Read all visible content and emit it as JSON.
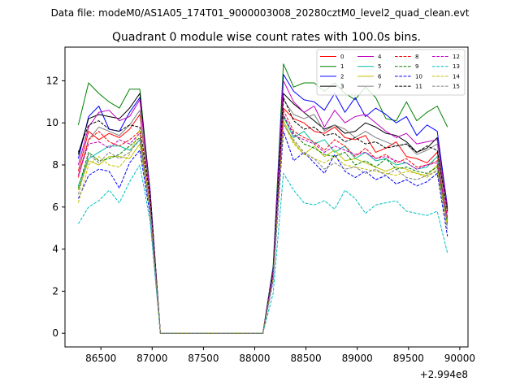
{
  "chart_data": {
    "type": "line",
    "suptitle": "Data file: modeM0/AS1A05_174T01_9000003008_20280cztM0_level2_quad_clean.evt",
    "title": "Quadrant 0 module wise count rates with 100.0s bins.",
    "xlabel": "",
    "ylabel": "",
    "x_offset_label": "+2.994e8",
    "xlim": [
      86150,
      90080
    ],
    "ylim": [
      -0.65,
      13.6
    ],
    "xticks": [
      86500,
      87000,
      87500,
      88000,
      88500,
      89000,
      89500,
      90000
    ],
    "yticks": [
      0,
      2,
      4,
      6,
      8,
      10,
      12
    ],
    "legend_position": "top-right",
    "x": [
      86280,
      86380,
      86480,
      86580,
      86680,
      86780,
      86880,
      86980,
      87080,
      87180,
      87280,
      87380,
      87480,
      87580,
      87680,
      87780,
      87880,
      87980,
      88080,
      88180,
      88280,
      88380,
      88480,
      88580,
      88680,
      88780,
      88880,
      88980,
      89080,
      89180,
      89280,
      89380,
      89480,
      89580,
      89680,
      89780,
      89880
    ],
    "series": [
      {
        "name": "0",
        "color": "#ff0000",
        "dash": "solid",
        "values": [
          7.7,
          9.6,
          9.2,
          9.5,
          9.3,
          9.7,
          10.4,
          6.5,
          0,
          0,
          0,
          0,
          0,
          0,
          0,
          0,
          0,
          0,
          0,
          2.8,
          10.7,
          10.2,
          10.0,
          9.6,
          9.5,
          9.8,
          9.3,
          9.2,
          9.4,
          8.6,
          8.8,
          9.1,
          8.4,
          8.3,
          8.1,
          8.6,
          5.8
        ]
      },
      {
        "name": "1",
        "color": "#008000",
        "dash": "solid",
        "values": [
          9.9,
          11.9,
          11.4,
          11.0,
          10.7,
          11.6,
          11.6,
          6.7,
          0,
          0,
          0,
          0,
          0,
          0,
          0,
          0,
          0,
          0,
          0,
          3.2,
          12.8,
          11.7,
          11.9,
          11.9,
          11.5,
          11.9,
          11.4,
          11.1,
          11.7,
          11.2,
          10.2,
          10.1,
          11.0,
          10.1,
          10.5,
          10.8,
          9.8
        ]
      },
      {
        "name": "2",
        "color": "#0000ff",
        "dash": "solid",
        "values": [
          8.3,
          10.3,
          10.8,
          9.7,
          9.6,
          10.5,
          11.2,
          6.8,
          0,
          0,
          0,
          0,
          0,
          0,
          0,
          0,
          0,
          0,
          0,
          3.1,
          12.3,
          11.5,
          11.1,
          11.0,
          10.6,
          11.4,
          10.5,
          11.2,
          10.3,
          10.7,
          10.4,
          10.0,
          10.3,
          9.4,
          9.9,
          9.6,
          6.0
        ]
      },
      {
        "name": "3",
        "color": "#000000",
        "dash": "solid",
        "values": [
          8.5,
          10.2,
          10.4,
          10.3,
          10.2,
          10.7,
          11.4,
          6.7,
          0,
          0,
          0,
          0,
          0,
          0,
          0,
          0,
          0,
          0,
          0,
          3.0,
          11.4,
          10.9,
          10.5,
          10.1,
          9.7,
          9.9,
          9.5,
          9.6,
          10.0,
          9.8,
          9.5,
          9.4,
          9.1,
          8.6,
          8.8,
          9.3,
          5.9
        ]
      },
      {
        "name": "4",
        "color": "#bf00bf",
        "dash": "solid",
        "values": [
          8.0,
          9.8,
          10.5,
          10.6,
          10.1,
          10.3,
          11.1,
          6.6,
          0,
          0,
          0,
          0,
          0,
          0,
          0,
          0,
          0,
          0,
          0,
          3.0,
          12.0,
          11.0,
          10.5,
          10.8,
          9.8,
          10.6,
          10.0,
          10.3,
          10.4,
          10.0,
          9.6,
          9.3,
          9.5,
          9.0,
          9.1,
          9.2,
          5.9
        ]
      },
      {
        "name": "5",
        "color": "#00bf9f",
        "dash": "solid",
        "values": [
          7.0,
          8.3,
          8.6,
          8.9,
          8.9,
          8.7,
          9.2,
          6.0,
          0,
          0,
          0,
          0,
          0,
          0,
          0,
          0,
          0,
          0,
          0,
          2.8,
          10.3,
          9.3,
          9.6,
          9.0,
          9.2,
          8.6,
          8.9,
          8.3,
          8.6,
          8.2,
          8.3,
          8.0,
          8.1,
          7.8,
          7.9,
          8.4,
          5.4
        ]
      },
      {
        "name": "6",
        "color": "#bfbf00",
        "dash": "solid",
        "values": [
          6.8,
          8.2,
          8.0,
          8.4,
          8.4,
          8.3,
          9.0,
          5.9,
          0,
          0,
          0,
          0,
          0,
          0,
          0,
          0,
          0,
          0,
          0,
          2.7,
          10.1,
          9.1,
          8.5,
          8.9,
          8.4,
          8.7,
          8.2,
          8.3,
          8.1,
          7.9,
          7.7,
          7.9,
          7.8,
          7.6,
          7.5,
          8.0,
          5.3
        ]
      },
      {
        "name": "7",
        "color": "#808080",
        "dash": "solid",
        "values": [
          7.5,
          9.2,
          9.8,
          9.6,
          9.4,
          9.9,
          10.6,
          6.4,
          0,
          0,
          0,
          0,
          0,
          0,
          0,
          0,
          0,
          0,
          0,
          2.9,
          11.1,
          10.4,
          10.2,
          10.4,
          9.6,
          9.9,
          9.7,
          9.3,
          9.6,
          9.3,
          9.1,
          8.9,
          9.0,
          8.5,
          8.7,
          9.0,
          5.7
        ]
      },
      {
        "name": "8",
        "color": "#ff0000",
        "dash": "dashed",
        "values": [
          7.4,
          9.2,
          9.6,
          9.1,
          8.9,
          9.2,
          9.6,
          6.2,
          0,
          0,
          0,
          0,
          0,
          0,
          0,
          0,
          0,
          0,
          0,
          2.8,
          10.6,
          9.6,
          9.3,
          9.1,
          8.7,
          9.2,
          8.9,
          8.4,
          8.8,
          8.3,
          8.5,
          8.1,
          8.3,
          7.9,
          8.0,
          8.2,
          5.5
        ]
      },
      {
        "name": "9",
        "color": "#008000",
        "dash": "dashed",
        "values": [
          6.9,
          8.6,
          8.2,
          8.3,
          8.5,
          8.9,
          9.3,
          6.0,
          0,
          0,
          0,
          0,
          0,
          0,
          0,
          0,
          0,
          0,
          0,
          2.7,
          10.3,
          9.5,
          9.0,
          8.8,
          8.5,
          8.4,
          8.6,
          8.0,
          8.2,
          7.9,
          8.3,
          7.8,
          7.9,
          7.7,
          7.6,
          7.9,
          5.2
        ]
      },
      {
        "name": "10",
        "color": "#0000ff",
        "dash": "dashed",
        "values": [
          6.4,
          7.5,
          7.8,
          7.7,
          6.9,
          8.1,
          8.7,
          5.6,
          0,
          0,
          0,
          0,
          0,
          0,
          0,
          0,
          0,
          0,
          0,
          2.5,
          9.6,
          8.2,
          8.6,
          8.1,
          7.6,
          8.5,
          7.7,
          7.4,
          7.7,
          7.3,
          7.5,
          7.1,
          7.3,
          7.0,
          7.2,
          7.6,
          4.6
        ]
      },
      {
        "name": "11",
        "color": "#000000",
        "dash": "dashed",
        "values": [
          8.6,
          9.9,
          10.1,
          9.7,
          9.6,
          9.9,
          9.8,
          6.5,
          0,
          0,
          0,
          0,
          0,
          0,
          0,
          0,
          0,
          0,
          0,
          2.9,
          11.2,
          10.1,
          9.7,
          9.8,
          9.4,
          9.5,
          9.1,
          9.3,
          9.0,
          9.1,
          8.8,
          8.9,
          9.0,
          8.6,
          8.9,
          8.7,
          5.8
        ]
      },
      {
        "name": "12",
        "color": "#bf00bf",
        "dash": "dashed",
        "values": [
          7.5,
          9.0,
          9.1,
          8.8,
          9.2,
          9.0,
          9.5,
          6.1,
          0,
          0,
          0,
          0,
          0,
          0,
          0,
          0,
          0,
          0,
          0,
          2.8,
          10.4,
          9.4,
          9.2,
          9.0,
          8.6,
          8.9,
          8.7,
          8.5,
          8.6,
          8.3,
          8.4,
          8.2,
          8.1,
          7.8,
          8.0,
          8.1,
          5.4
        ]
      },
      {
        "name": "13",
        "color": "#00bfbf",
        "dash": "dashed",
        "values": [
          5.2,
          6.0,
          6.3,
          6.8,
          6.2,
          7.2,
          8.0,
          5.3,
          0,
          0,
          0,
          0,
          0,
          0,
          0,
          0,
          0,
          0,
          0,
          1.9,
          7.6,
          6.8,
          6.2,
          6.1,
          6.3,
          5.9,
          6.8,
          6.4,
          5.7,
          6.1,
          6.2,
          6.3,
          5.8,
          5.7,
          5.6,
          5.8,
          3.8
        ]
      },
      {
        "name": "14",
        "color": "#bfbf00",
        "dash": "dashed",
        "values": [
          6.2,
          8.0,
          8.4,
          8.0,
          7.9,
          8.5,
          9.7,
          5.9,
          0,
          0,
          0,
          0,
          0,
          0,
          0,
          0,
          0,
          0,
          0,
          2.6,
          10.0,
          9.0,
          8.5,
          8.3,
          8.1,
          8.4,
          8.0,
          7.9,
          7.8,
          7.7,
          7.6,
          7.5,
          7.7,
          7.6,
          7.4,
          7.8,
          5.1
        ]
      },
      {
        "name": "15",
        "color": "#808080",
        "dash": "dashed",
        "values": [
          6.6,
          8.5,
          8.1,
          8.6,
          8.3,
          8.6,
          9.2,
          5.8,
          0,
          0,
          0,
          0,
          0,
          0,
          0,
          0,
          0,
          0,
          0,
          2.6,
          9.9,
          9.2,
          8.6,
          8.3,
          7.8,
          8.1,
          7.8,
          7.9,
          7.6,
          7.8,
          7.5,
          7.8,
          7.4,
          7.3,
          7.5,
          7.7,
          4.9
        ]
      }
    ]
  }
}
